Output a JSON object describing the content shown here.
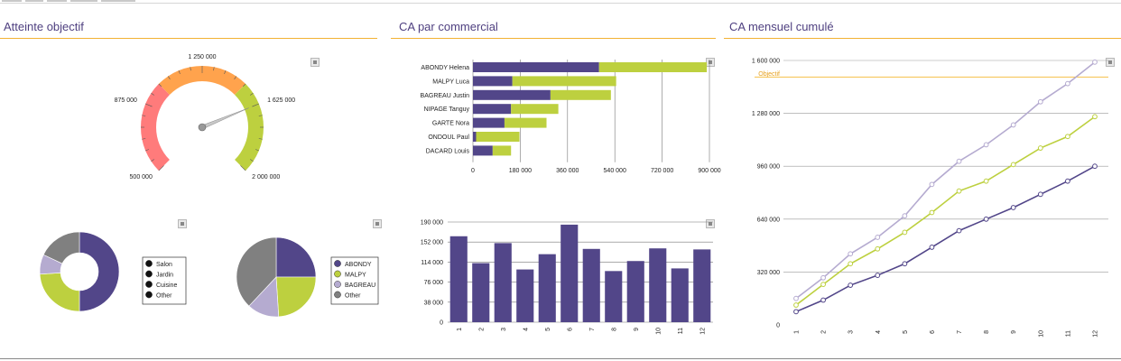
{
  "sections": {
    "objective_title": "Atteinte objectif",
    "sales_title": "CA par commercial",
    "monthly_title": "CA mensuel cumulé"
  },
  "colors": {
    "purple": "#524689",
    "green": "#bdd03f",
    "lavender": "#b5abd0",
    "gray": "#808080",
    "red": "#ff7b7b",
    "orange": "#ffa34d",
    "objective_line": "#f6c04a",
    "section_line": "#f2b233"
  },
  "icons": {
    "download": "download-icon"
  },
  "chart_data": [
    {
      "id": "gauge",
      "type": "gauge",
      "title": "",
      "min": 500000,
      "max": 2000000,
      "value": 1625000,
      "tick_labels": [
        "500 000",
        "875 000",
        "1 250 000",
        "1 625 000",
        "2 000 000"
      ],
      "bands": [
        {
          "from": 500000,
          "to": 1000000,
          "color": "#ff7b7b"
        },
        {
          "from": 1000000,
          "to": 1500000,
          "color": "#ffa34d"
        },
        {
          "from": 1500000,
          "to": 2000000,
          "color": "#bdd03f"
        }
      ]
    },
    {
      "id": "donut",
      "type": "pie",
      "donut": true,
      "title": "",
      "slices": [
        {
          "label": "Salon",
          "value": 50,
          "color": "#524689"
        },
        {
          "label": "Jardin",
          "value": 24,
          "color": "#bdd03f"
        },
        {
          "label": "Cuisine",
          "value": 8,
          "color": "#b5abd0"
        },
        {
          "label": "Other",
          "value": 18,
          "color": "#808080"
        }
      ],
      "legend": "right"
    },
    {
      "id": "pie",
      "type": "pie",
      "donut": false,
      "title": "",
      "slices": [
        {
          "label": "ABONDY",
          "value": 25,
          "color": "#524689"
        },
        {
          "label": "MALPY",
          "value": 24,
          "color": "#bdd03f"
        },
        {
          "label": "BAGREAU",
          "value": 13,
          "color": "#b5abd0"
        },
        {
          "label": "Other",
          "value": 38,
          "color": "#808080"
        }
      ],
      "legend": "right"
    },
    {
      "id": "hbar",
      "type": "bar",
      "orientation": "horizontal",
      "stacked": true,
      "title": "",
      "categories": [
        "ABONDY Helena",
        "MALPY Luca",
        "BAGREAU Justin",
        "NIPAGE Tanguy",
        "GARTE Nora",
        "ONDOUL Paul",
        "DACARD Louis"
      ],
      "series": [
        {
          "color": "#524689",
          "values": [
            480000,
            150000,
            295000,
            145000,
            120000,
            12000,
            75000
          ]
        },
        {
          "color": "#bdd03f",
          "values": [
            410000,
            395000,
            230000,
            180000,
            160000,
            165000,
            70000
          ]
        }
      ],
      "xlim": [
        0,
        900000
      ],
      "xticks": [
        0,
        180000,
        360000,
        540000,
        720000,
        900000
      ],
      "xtick_labels": [
        "0",
        "180 000",
        "360 000",
        "540 000",
        "720 000",
        "900 000"
      ],
      "grid": true
    },
    {
      "id": "vbar",
      "type": "bar",
      "orientation": "vertical",
      "title": "",
      "categories": [
        "1",
        "2",
        "3",
        "4",
        "5",
        "6",
        "7",
        "8",
        "9",
        "10",
        "11",
        "12"
      ],
      "values": [
        163000,
        112000,
        150000,
        100000,
        129000,
        185000,
        139000,
        97000,
        116000,
        140000,
        102000,
        138000
      ],
      "color": "#524689",
      "ylim": [
        0,
        190000
      ],
      "yticks": [
        0,
        38000,
        76000,
        114000,
        152000,
        190000
      ],
      "ytick_labels": [
        "0",
        "38 000",
        "76 000",
        "114 000",
        "152 000",
        "190 000"
      ],
      "grid": true
    },
    {
      "id": "line",
      "type": "line",
      "title": "",
      "x": [
        "1",
        "2",
        "3",
        "4",
        "5",
        "6",
        "7",
        "8",
        "9",
        "10",
        "11",
        "12"
      ],
      "series": [
        {
          "color": "#524689",
          "values": [
            80000,
            150000,
            240000,
            300000,
            370000,
            470000,
            570000,
            640000,
            710000,
            790000,
            870000,
            960000
          ]
        },
        {
          "color": "#bdd03f",
          "values": [
            120000,
            245000,
            370000,
            460000,
            560000,
            680000,
            810000,
            870000,
            970000,
            1070000,
            1140000,
            1260000
          ]
        },
        {
          "color": "#b5abd0",
          "values": [
            160000,
            285000,
            430000,
            530000,
            660000,
            850000,
            990000,
            1090000,
            1210000,
            1350000,
            1460000,
            1590000
          ]
        }
      ],
      "objective": {
        "label": "Objectif",
        "value": 1500000
      },
      "ylim": [
        0,
        1600000
      ],
      "yticks": [
        0,
        320000,
        640000,
        960000,
        1280000,
        1600000
      ],
      "ytick_labels": [
        "0",
        "320 000",
        "640 000",
        "960 000",
        "1 280 000",
        "1 600 000"
      ],
      "grid": true
    }
  ]
}
